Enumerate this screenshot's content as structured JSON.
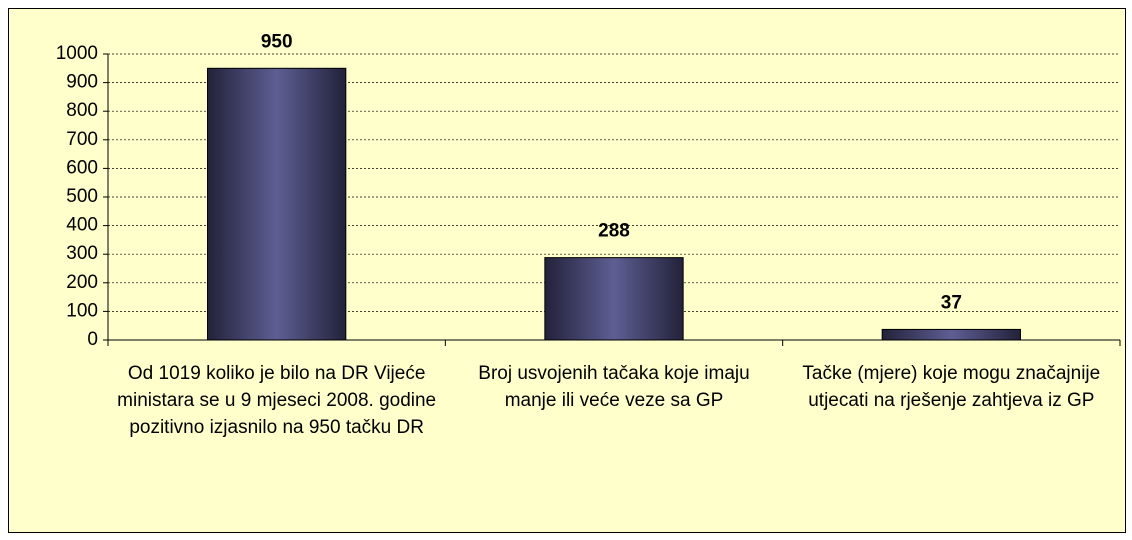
{
  "chart_data": {
    "type": "bar",
    "categories": [
      "Od 1019 koliko je bilo na DR Vijeće ministara se u 9 mjeseci 2008. godine pozitivno izjasnilo na 950 tačku DR",
      "Broj usvojenih tačaka koje imaju manje ili veće veze sa GP",
      "Tačke (mjere) koje mogu značajnije utjecati na rješenje zahtjeva iz GP"
    ],
    "values": [
      950,
      288,
      37
    ],
    "color": "#5e5e94",
    "ylim": [
      0,
      1000
    ],
    "yticks": [
      0,
      100,
      200,
      300,
      400,
      500,
      600,
      700,
      800,
      900,
      1000
    ],
    "grid": true
  }
}
